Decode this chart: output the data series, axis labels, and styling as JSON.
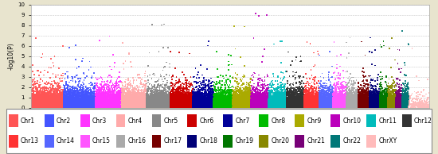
{
  "title": "",
  "ylabel": "-log10(P)",
  "ylim": [
    0,
    10
  ],
  "yticks": [
    0,
    1,
    2,
    3,
    4,
    5,
    6,
    7,
    8,
    9,
    10
  ],
  "outer_bg": "#e8e4ce",
  "plot_bg": "#ffffff",
  "chr_labels": [
    "Chr1",
    "Chr2",
    "Chr3",
    "Chr4",
    "Chr5",
    "Chr6",
    "Chr7",
    "Chr8",
    "Chr9",
    "Chr10",
    "Chr11",
    "Chr12",
    "Chr13",
    "Chr14",
    "Chr15",
    "Chr16",
    "Chr17",
    "Chr18",
    "Chr19",
    "Chr20",
    "Chr21",
    "Chr22",
    "ChrXY"
  ],
  "chr_colors": [
    "#ff5555",
    "#4455ff",
    "#ff33ff",
    "#ffaaaa",
    "#888888",
    "#cc0000",
    "#000099",
    "#00bb00",
    "#aaaa00",
    "#bb00bb",
    "#00bbbb",
    "#333333",
    "#ff3333",
    "#5566ff",
    "#ff55ff",
    "#aaaaaa",
    "#770000",
    "#000077",
    "#007700",
    "#888800",
    "#770077",
    "#007777",
    "#ffbbbb"
  ],
  "chr_sizes": [
    248956422,
    242193529,
    198295559,
    190214555,
    181538259,
    170805979,
    159345973,
    145138636,
    138394717,
    133797422,
    135086622,
    133275309,
    114364328,
    107043718,
    101991189,
    90338345,
    83257441,
    80373285,
    58617616,
    64444167,
    46709983,
    50818468,
    156040895
  ],
  "n_snps_per_chr": [
    8000,
    7500,
    6500,
    6000,
    5800,
    5500,
    5000,
    4600,
    4400,
    4300,
    4300,
    4200,
    3700,
    3400,
    3200,
    2900,
    2600,
    2400,
    1800,
    2000,
    1400,
    1500,
    300
  ],
  "seed": 12345,
  "dot_size": 1.5,
  "grid_color": "#bbbbbb",
  "legend_fontsize": 5.5
}
